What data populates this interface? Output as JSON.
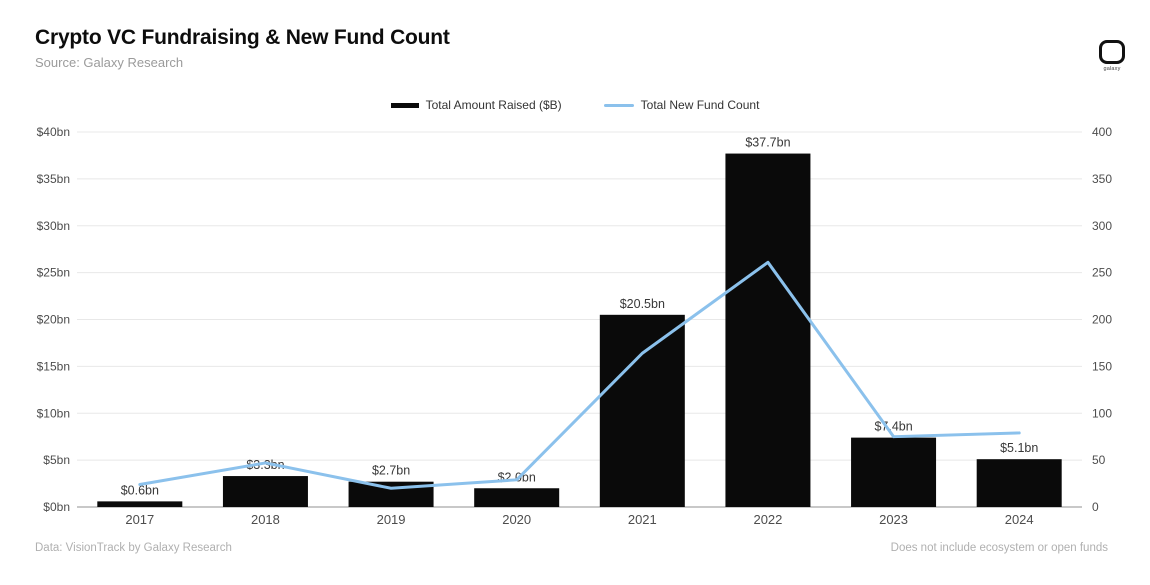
{
  "header": {
    "title": "Crypto VC Fundraising & New Fund Count",
    "source": "Source: Galaxy Research",
    "logo_label": "galaxy"
  },
  "legend": {
    "bar_label": "Total Amount Raised ($B)",
    "line_label": "Total New Fund Count"
  },
  "footer": {
    "left": "Data: VisionTrack by Galaxy Research",
    "right": "Does not include ecosystem or open funds"
  },
  "colors": {
    "bar": "#0a0a0a",
    "line": "#8bc1ec",
    "grid": "#e8e8e8",
    "baseline": "#b5b5b5",
    "axis_text": "#4d4d4d",
    "value_label_text": "#383838",
    "x_label_text": "#4d4d4d"
  },
  "chart_data": {
    "type": "bar",
    "title": "Crypto VC Fundraising & New Fund Count",
    "categories": [
      "2017",
      "2018",
      "2019",
      "2020",
      "2021",
      "2022",
      "2023",
      "2024"
    ],
    "series": [
      {
        "name": "Total Amount Raised ($B)",
        "type": "bar",
        "axis": "left",
        "values": [
          0.6,
          3.3,
          2.7,
          2.0,
          20.5,
          37.7,
          7.4,
          5.1
        ],
        "labels": [
          "$0.6bn",
          "$3.3bn",
          "$2.7bn",
          "$2.0bn",
          "$20.5bn",
          "$37.7bn",
          "$7.4bn",
          "$5.1bn"
        ]
      },
      {
        "name": "Total New Fund Count",
        "type": "line",
        "axis": "right",
        "values": [
          24,
          47,
          20,
          29,
          164,
          261,
          75,
          79
        ]
      }
    ],
    "left_axis": {
      "min": 0,
      "max": 40,
      "ticks": [
        "$0bn",
        "$5bn",
        "$10bn",
        "$15bn",
        "$20bn",
        "$25bn",
        "$30bn",
        "$35bn",
        "$40bn"
      ]
    },
    "right_axis": {
      "min": 0,
      "max": 400,
      "ticks": [
        "0",
        "50",
        "100",
        "150",
        "200",
        "250",
        "300",
        "350",
        "400"
      ]
    },
    "grid": true,
    "legend_position": "top-center"
  }
}
